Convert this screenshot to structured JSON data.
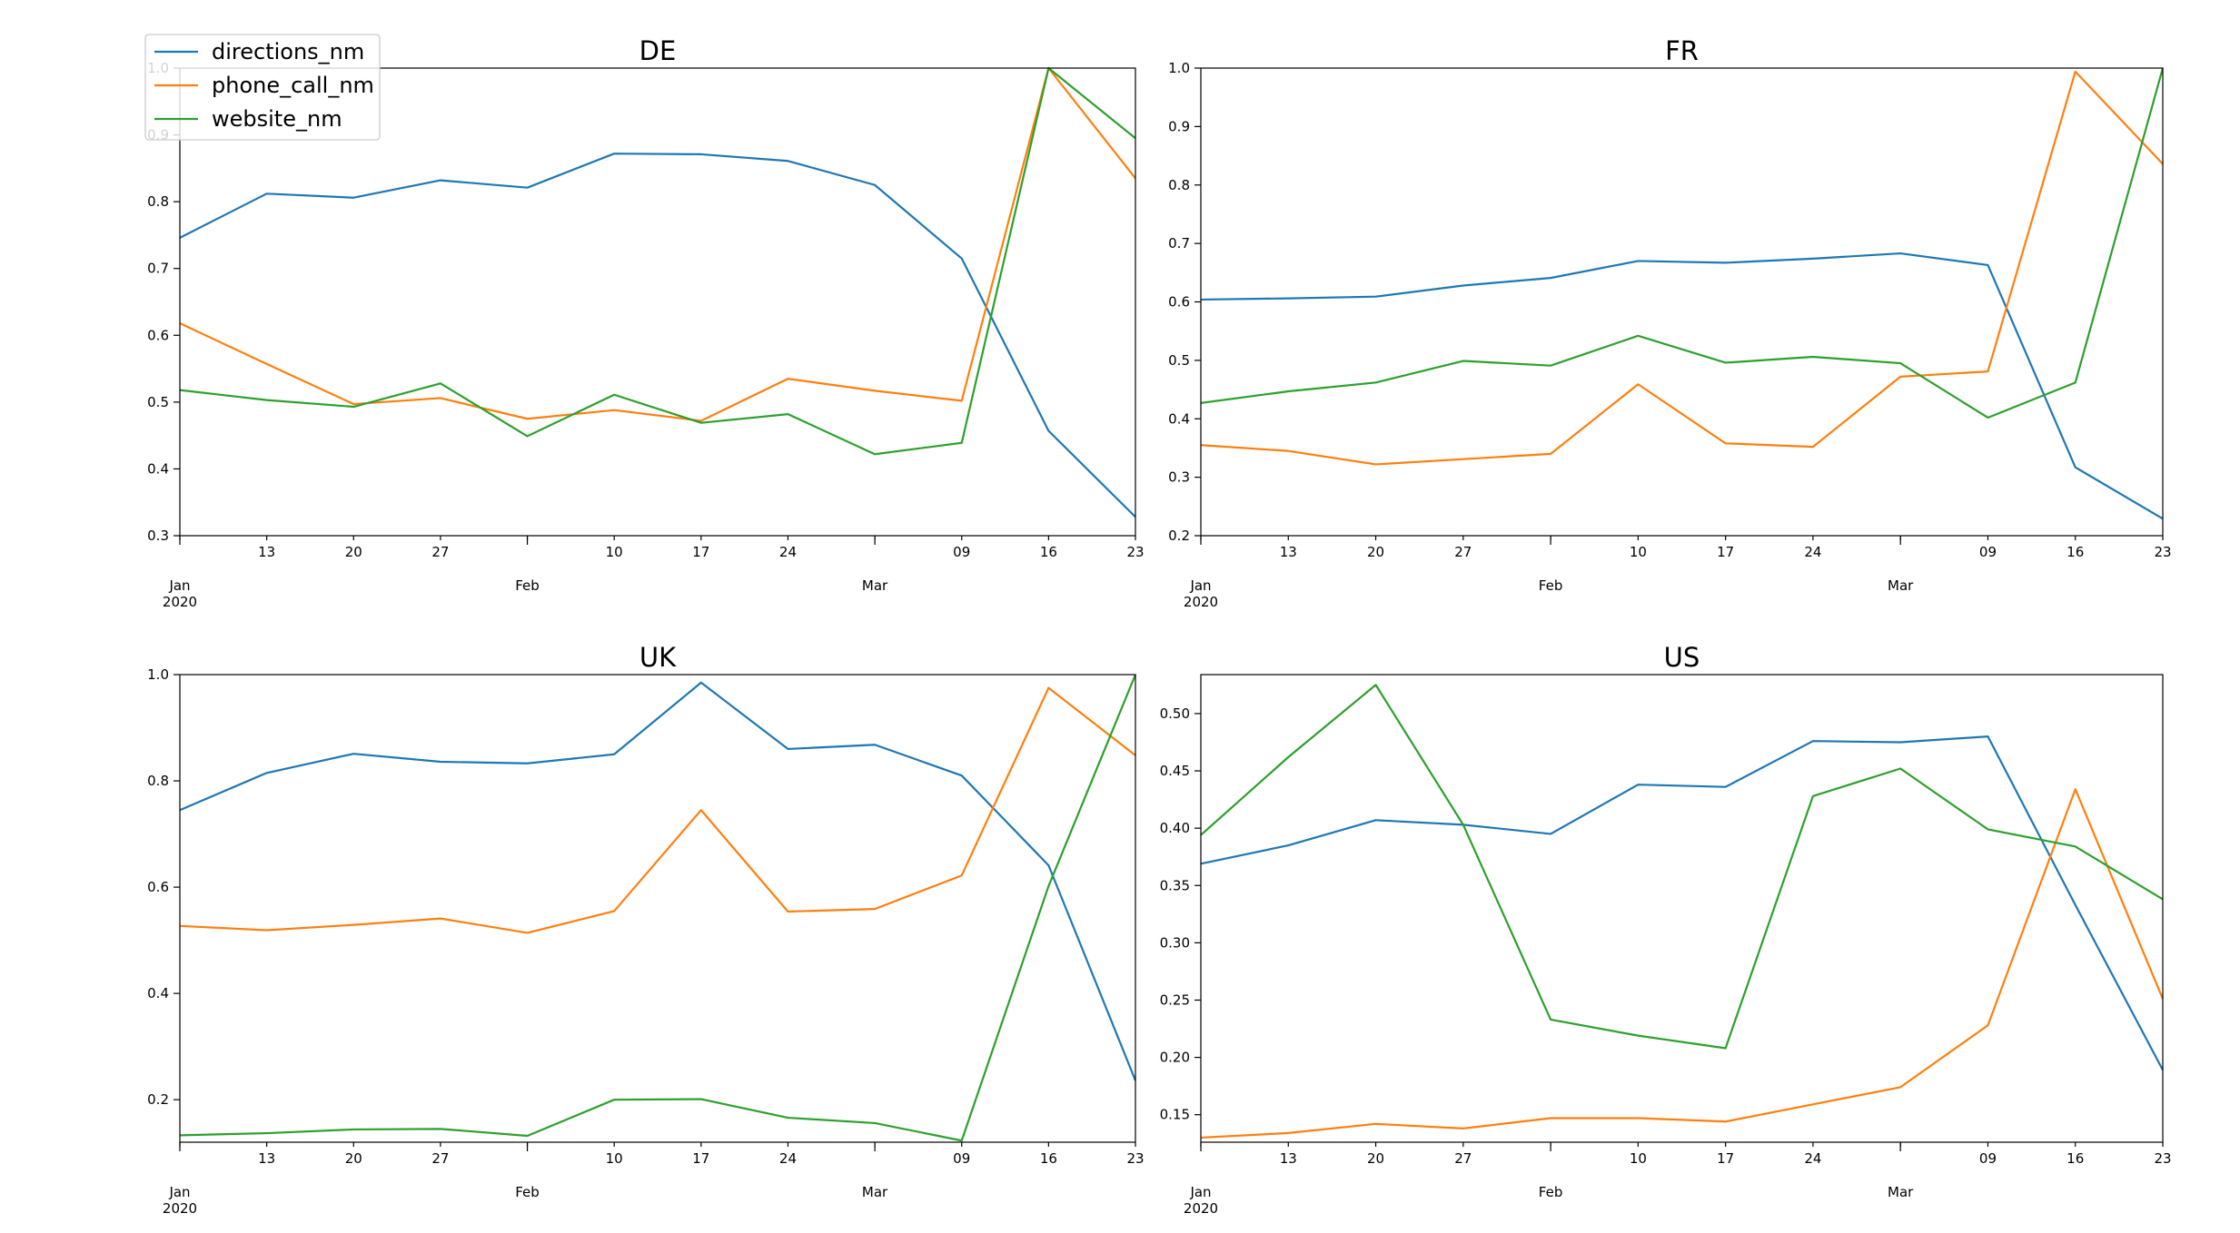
{
  "legend": {
    "placement": "top-left",
    "entries": [
      "directions_nm",
      "phone_call_nm",
      "website_nm"
    ]
  },
  "colors": {
    "directions_nm": "#1f77b4",
    "phone_call_nm": "#ff7f0e",
    "website_nm": "#2ca02c"
  },
  "x_axis": {
    "dates": [
      "2020-01-06",
      "2020-01-13",
      "2020-01-20",
      "2020-01-27",
      "2020-02-03",
      "2020-02-10",
      "2020-02-17",
      "2020-02-24",
      "2020-03-02",
      "2020-03-09",
      "2020-03-16",
      "2020-03-23"
    ],
    "minor_ticks": [
      "",
      "13",
      "20",
      "27",
      "",
      "10",
      "17",
      "24",
      "",
      "09",
      "16",
      "23"
    ],
    "major_ticks": [
      {
        "index": 0,
        "label": "Jan",
        "year": "2020"
      },
      {
        "index": 4,
        "label": "Feb",
        "year": ""
      },
      {
        "index": 8,
        "label": "Mar",
        "year": ""
      }
    ]
  },
  "chart_data": [
    {
      "type": "line",
      "title": "DE",
      "ylim": [
        0.3,
        1.0
      ],
      "yticks": [
        0.3,
        0.4,
        0.5,
        0.6,
        0.7,
        0.8,
        0.9,
        1.0
      ],
      "yticklabels": [
        "0.3",
        "0.4",
        "0.5",
        "0.6",
        "0.7",
        "0.8",
        "0.9",
        "1.0"
      ],
      "legend": "top-left",
      "grid": false,
      "series": [
        {
          "name": "directions_nm",
          "values": [
            0.746,
            0.812,
            0.806,
            0.832,
            0.821,
            0.872,
            0.871,
            0.861,
            0.825,
            0.715,
            0.457,
            0.328
          ]
        },
        {
          "name": "phone_call_nm",
          "values": [
            0.618,
            0.557,
            0.497,
            0.506,
            0.475,
            0.488,
            0.472,
            0.535,
            0.517,
            0.502,
            1.0,
            0.835
          ]
        },
        {
          "name": "website_nm",
          "values": [
            0.518,
            0.503,
            0.493,
            0.528,
            0.449,
            0.511,
            0.469,
            0.482,
            0.422,
            0.439,
            1.0,
            0.895
          ]
        }
      ]
    },
    {
      "type": "line",
      "title": "FR",
      "ylim": [
        0.2,
        1.0
      ],
      "yticks": [
        0.2,
        0.3,
        0.4,
        0.5,
        0.6,
        0.7,
        0.8,
        0.9,
        1.0
      ],
      "yticklabels": [
        "0.2",
        "0.3",
        "0.4",
        "0.5",
        "0.6",
        "0.7",
        "0.8",
        "0.9",
        "1.0"
      ],
      "grid": false,
      "series": [
        {
          "name": "directions_nm",
          "values": [
            0.604,
            0.606,
            0.609,
            0.628,
            0.641,
            0.67,
            0.667,
            0.674,
            0.683,
            0.663,
            0.317,
            0.229
          ]
        },
        {
          "name": "phone_call_nm",
          "values": [
            0.355,
            0.345,
            0.322,
            0.331,
            0.34,
            0.459,
            0.358,
            0.352,
            0.472,
            0.481,
            0.994,
            0.836
          ]
        },
        {
          "name": "website_nm",
          "values": [
            0.427,
            0.447,
            0.462,
            0.499,
            0.491,
            0.542,
            0.496,
            0.506,
            0.495,
            0.402,
            0.462,
            1.0
          ]
        }
      ]
    },
    {
      "type": "line",
      "title": "UK",
      "ylim": [
        0.12,
        1.0
      ],
      "yticks": [
        0.2,
        0.4,
        0.6,
        0.8,
        1.0
      ],
      "yticklabels": [
        "0.2",
        "0.4",
        "0.6",
        "0.8",
        "1.0"
      ],
      "grid": false,
      "series": [
        {
          "name": "directions_nm",
          "values": [
            0.745,
            0.815,
            0.851,
            0.836,
            0.833,
            0.85,
            0.985,
            0.86,
            0.868,
            0.81,
            0.641,
            0.236
          ]
        },
        {
          "name": "phone_call_nm",
          "values": [
            0.527,
            0.519,
            0.529,
            0.541,
            0.514,
            0.555,
            0.745,
            0.554,
            0.559,
            0.622,
            0.975,
            0.848
          ]
        },
        {
          "name": "website_nm",
          "values": [
            0.133,
            0.137,
            0.144,
            0.145,
            0.132,
            0.2,
            0.201,
            0.166,
            0.156,
            0.123,
            0.602,
            1.0
          ]
        }
      ]
    },
    {
      "type": "line",
      "title": "US",
      "ylim": [
        0.126,
        0.534
      ],
      "yticks": [
        0.15,
        0.2,
        0.25,
        0.3,
        0.35,
        0.4,
        0.45,
        0.5
      ],
      "yticklabels": [
        "0.15",
        "0.20",
        "0.25",
        "0.30",
        "0.35",
        "0.40",
        "0.45",
        "0.50"
      ],
      "grid": false,
      "series": [
        {
          "name": "directions_nm",
          "values": [
            0.369,
            0.385,
            0.407,
            0.403,
            0.395,
            0.438,
            0.436,
            0.476,
            0.475,
            0.48,
            0.333,
            0.189
          ]
        },
        {
          "name": "phone_call_nm",
          "values": [
            0.13,
            0.134,
            0.142,
            0.138,
            0.147,
            0.147,
            0.144,
            0.159,
            0.174,
            0.228,
            0.434,
            0.251
          ]
        },
        {
          "name": "website_nm",
          "values": [
            0.394,
            0.462,
            0.525,
            0.403,
            0.233,
            0.219,
            0.208,
            0.428,
            0.452,
            0.399,
            0.384,
            0.338
          ]
        }
      ]
    }
  ]
}
